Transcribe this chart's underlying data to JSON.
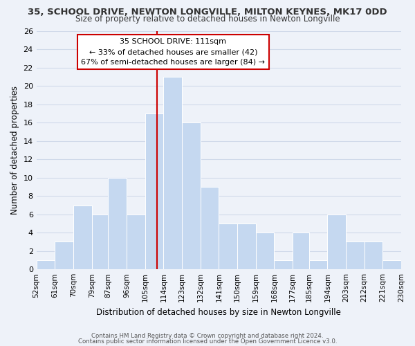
{
  "title": "35, SCHOOL DRIVE, NEWTON LONGVILLE, MILTON KEYNES, MK17 0DD",
  "subtitle": "Size of property relative to detached houses in Newton Longville",
  "xlabel": "Distribution of detached houses by size in Newton Longville",
  "ylabel": "Number of detached properties",
  "bin_edges": [
    52,
    61,
    70,
    79,
    87,
    96,
    105,
    114,
    123,
    132,
    141,
    150,
    159,
    168,
    177,
    185,
    194,
    203,
    212,
    221,
    230
  ],
  "counts": [
    1,
    3,
    7,
    6,
    10,
    6,
    17,
    21,
    16,
    9,
    5,
    5,
    4,
    1,
    4,
    1,
    6,
    3,
    3,
    1
  ],
  "bar_color": "#c5d8f0",
  "bar_edge_color": "#ffffff",
  "grid_color": "#d0daea",
  "vline_x": 111,
  "vline_color": "#cc0000",
  "annotation_title": "35 SCHOOL DRIVE: 111sqm",
  "annotation_line1": "← 33% of detached houses are smaller (42)",
  "annotation_line2": "67% of semi-detached houses are larger (84) →",
  "annotation_box_edge": "#cc0000",
  "ylim": [
    0,
    26
  ],
  "yticks": [
    0,
    2,
    4,
    6,
    8,
    10,
    12,
    14,
    16,
    18,
    20,
    22,
    24,
    26
  ],
  "footer1": "Contains HM Land Registry data © Crown copyright and database right 2024.",
  "footer2": "Contains public sector information licensed under the Open Government Licence v3.0.",
  "bg_color": "#eef2f9"
}
